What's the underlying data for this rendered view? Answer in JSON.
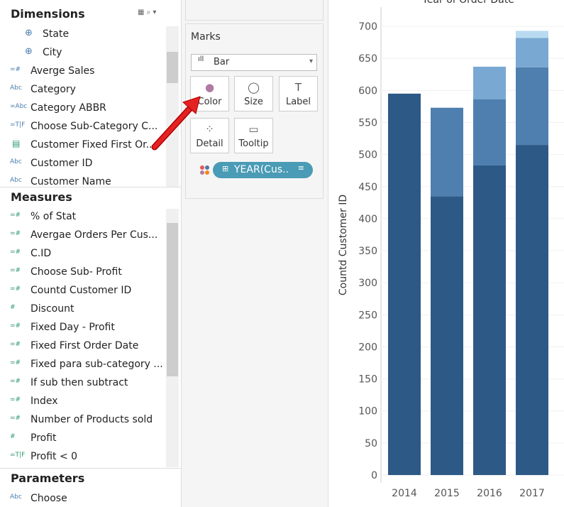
{
  "sidebar": {
    "dimensions": {
      "title": "Dimensions",
      "items": [
        {
          "label": "State"
        },
        {
          "label": "City"
        },
        {
          "icon": "=#",
          "label": "Averge Sales"
        },
        {
          "icon": "Abc",
          "label": "Category"
        },
        {
          "icon": "=Abc",
          "label": "Category ABBR"
        },
        {
          "icon": "=T|F",
          "label": "Choose Sub-Category C..."
        },
        {
          "label": "Customer Fixed First Or..."
        },
        {
          "icon": "Abc",
          "label": "Customer ID"
        },
        {
          "icon": "Abc",
          "label": "Customer Name"
        }
      ]
    },
    "measures": {
      "title": "Measures",
      "items": [
        {
          "icon": "=#",
          "label": "% of Stat"
        },
        {
          "icon": "=#",
          "label": "Avergae Orders Per Cus..."
        },
        {
          "icon": "=#",
          "label": "C.ID"
        },
        {
          "icon": "=#",
          "label": "Choose Sub- Profit"
        },
        {
          "icon": "=#",
          "label": "Countd Customer ID"
        },
        {
          "icon": "#",
          "label": "Discount"
        },
        {
          "icon": "=#",
          "label": "Fixed Day  - Profit"
        },
        {
          "icon": "=#",
          "label": "Fixed First Order Date"
        },
        {
          "icon": "=#",
          "label": "Fixed para sub-category ..."
        },
        {
          "icon": "=#",
          "label": "If sub then subtract"
        },
        {
          "icon": "=#",
          "label": "Index"
        },
        {
          "icon": "=#",
          "label": "Number of Products sold"
        },
        {
          "icon": "#",
          "label": "Profit"
        },
        {
          "icon": "=T|F",
          "label": "Profit < 0"
        }
      ]
    },
    "parameters": {
      "title": "Parameters",
      "items": [
        {
          "icon": "Abc",
          "label": "Choose"
        }
      ]
    }
  },
  "marks": {
    "title": "Marks",
    "mark_type": "Bar",
    "buttons": [
      "Color",
      "Size",
      "Label",
      "Detail",
      "Tooltip"
    ],
    "pill": "YEAR(Cus.."
  },
  "chart_data": {
    "type": "bar",
    "stacked": true,
    "title": "Year of Order Date",
    "y_label": "Countd Customer ID",
    "categories": [
      "2014",
      "2015",
      "2016",
      "2017"
    ],
    "series": [
      {
        "color": "#2d5986",
        "values": [
          595,
          435,
          483,
          515
        ]
      },
      {
        "color": "#4f7faf",
        "values": [
          null,
          138,
          103,
          121
        ]
      },
      {
        "color": "#79a8d2",
        "values": [
          null,
          null,
          51,
          46
        ]
      },
      {
        "color": "#b9dbf0",
        "values": [
          null,
          null,
          null,
          11
        ]
      }
    ],
    "ylim": [
      0,
      730
    ],
    "yticks": [
      0,
      50,
      100,
      150,
      200,
      250,
      300,
      350,
      400,
      450,
      500,
      550,
      600,
      650,
      700
    ],
    "grid": true
  }
}
